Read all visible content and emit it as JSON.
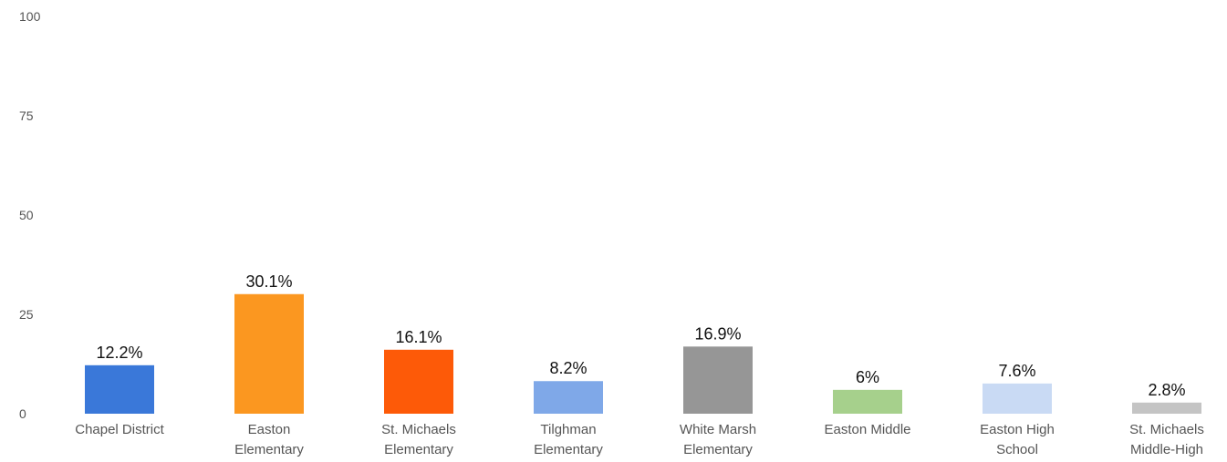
{
  "chart_data": {
    "type": "bar",
    "categories": [
      "Chapel District",
      "Easton Elementary",
      "St. Michaels Elementary",
      "Tilghman Elementary",
      "White Marsh Elementary",
      "Easton Middle",
      "Easton High School",
      "St. Michaels Middle-High"
    ],
    "category_lines": [
      [
        "Chapel District"
      ],
      [
        "Easton",
        "Elementary"
      ],
      [
        "St. Michaels",
        "Elementary"
      ],
      [
        "Tilghman",
        "Elementary"
      ],
      [
        "White Marsh",
        "Elementary"
      ],
      [
        "Easton Middle"
      ],
      [
        "Easton High",
        "School"
      ],
      [
        "St. Michaels",
        "Middle-High"
      ]
    ],
    "values": [
      12.2,
      30.1,
      16.1,
      8.2,
      16.9,
      6,
      7.6,
      2.8
    ],
    "data_labels": [
      "12.2%",
      "30.1%",
      "16.1%",
      "8.2%",
      "16.9%",
      "6%",
      "7.6%",
      "2.8%"
    ],
    "colors": [
      "#3a78d9",
      "#fb9720",
      "#fd5a08",
      "#7fa8e8",
      "#969696",
      "#a6d08c",
      "#c9daf4",
      "#c4c4c4"
    ],
    "ylim": [
      0,
      100
    ],
    "yticks": [
      0,
      25,
      50,
      75,
      100
    ],
    "title": "",
    "xlabel": "",
    "ylabel": "",
    "grid": false,
    "legend": "none"
  }
}
